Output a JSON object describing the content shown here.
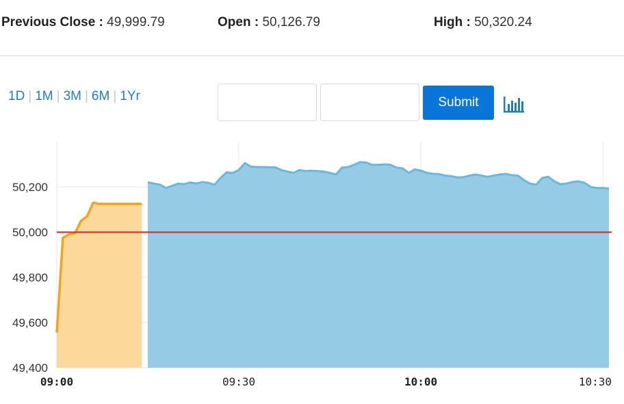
{
  "stats": {
    "previous_close": {
      "label": "Previous Close :",
      "value": "49,999.79"
    },
    "open": {
      "label": "Open :",
      "value": "50,126.79"
    },
    "high": {
      "label": "High :",
      "value": "50,320.24"
    }
  },
  "ranges": [
    "1D",
    "1M",
    "3M",
    "6M",
    "1Yr"
  ],
  "form": {
    "from_value": "",
    "to_value": "",
    "submit_label": "Submit"
  },
  "icons": {
    "chart_toggle": "bar-chart-icon"
  },
  "colors": {
    "pre_open_fill": "#fcd89a",
    "pre_open_line": "#f2a51c",
    "session_fill": "#96cbe5",
    "session_line": "#6cb7de",
    "reference_line": "#cc2a2a",
    "button": "#0a75d8"
  },
  "chart_data": {
    "type": "area",
    "ylim": [
      49400,
      50400
    ],
    "yticks": [
      {
        "value": 49400,
        "label": "49,400"
      },
      {
        "value": 49600,
        "label": "49,600"
      },
      {
        "value": 49800,
        "label": "49,800"
      },
      {
        "value": 50000,
        "label": "50,000"
      },
      {
        "value": 50200,
        "label": "50,200"
      }
    ],
    "xlim": [
      "09:00",
      "10:31"
    ],
    "xticks": [
      {
        "time": "09:00",
        "label": "09:00",
        "bold": true
      },
      {
        "time": "09:30",
        "label": "09:30",
        "bold": false
      },
      {
        "time": "10:00",
        "label": "10:00",
        "bold": true
      },
      {
        "time": "10:30",
        "label": "10:30",
        "bold": false
      }
    ],
    "reference_line": 49999.79,
    "grid": true,
    "legend": "none",
    "series": [
      {
        "kind": "pre-open",
        "x": [
          "09:00",
          "09:01",
          "09:02",
          "09:03",
          "09:04",
          "09:05",
          "09:06",
          "09:07",
          "09:08",
          "09:09",
          "09:10",
          "09:11",
          "09:12",
          "09:13",
          "09:14"
        ],
        "values": [
          49555,
          49975,
          49990,
          49995,
          50050,
          50070,
          50130,
          50125,
          50125,
          50125,
          50125,
          50125,
          50125,
          50125,
          50125
        ]
      },
      {
        "kind": "session",
        "x": [
          "09:15",
          "09:16",
          "09:17",
          "09:18",
          "09:19",
          "09:20",
          "09:21",
          "09:22",
          "09:23",
          "09:24",
          "09:25",
          "09:26",
          "09:27",
          "09:28",
          "09:29",
          "09:30",
          "09:31",
          "09:32",
          "09:33",
          "09:34",
          "09:35",
          "09:36",
          "09:37",
          "09:38",
          "09:39",
          "09:40",
          "09:41",
          "09:42",
          "09:43",
          "09:44",
          "09:45",
          "09:46",
          "09:47",
          "09:48",
          "09:49",
          "09:50",
          "09:51",
          "09:52",
          "09:53",
          "09:54",
          "09:55",
          "09:56",
          "09:57",
          "09:58",
          "09:59",
          "10:00",
          "10:01",
          "10:02",
          "10:03",
          "10:04",
          "10:05",
          "10:06",
          "10:07",
          "10:08",
          "10:09",
          "10:10",
          "10:11",
          "10:12",
          "10:13",
          "10:14",
          "10:15",
          "10:16",
          "10:17",
          "10:18",
          "10:19",
          "10:20",
          "10:21",
          "10:22",
          "10:23",
          "10:24",
          "10:25",
          "10:26",
          "10:27",
          "10:28",
          "10:29",
          "10:30",
          "10:31"
        ],
        "values": [
          50220,
          50215,
          50210,
          50195,
          50205,
          50215,
          50212,
          50220,
          50215,
          50222,
          50218,
          50210,
          50240,
          50265,
          50262,
          50275,
          50305,
          50290,
          50288,
          50288,
          50287,
          50287,
          50275,
          50268,
          50262,
          50275,
          50270,
          50272,
          50270,
          50268,
          50262,
          50255,
          50285,
          50288,
          50298,
          50310,
          50308,
          50298,
          50298,
          50300,
          50298,
          50285,
          50282,
          50262,
          50278,
          50272,
          50262,
          50258,
          50257,
          50250,
          50248,
          50242,
          50243,
          50250,
          50255,
          50250,
          50245,
          50250,
          50255,
          50258,
          50252,
          50250,
          50230,
          50215,
          50210,
          50240,
          50245,
          50225,
          50212,
          50215,
          50222,
          50225,
          50218,
          50200,
          50195,
          50195,
          50192
        ]
      }
    ]
  }
}
